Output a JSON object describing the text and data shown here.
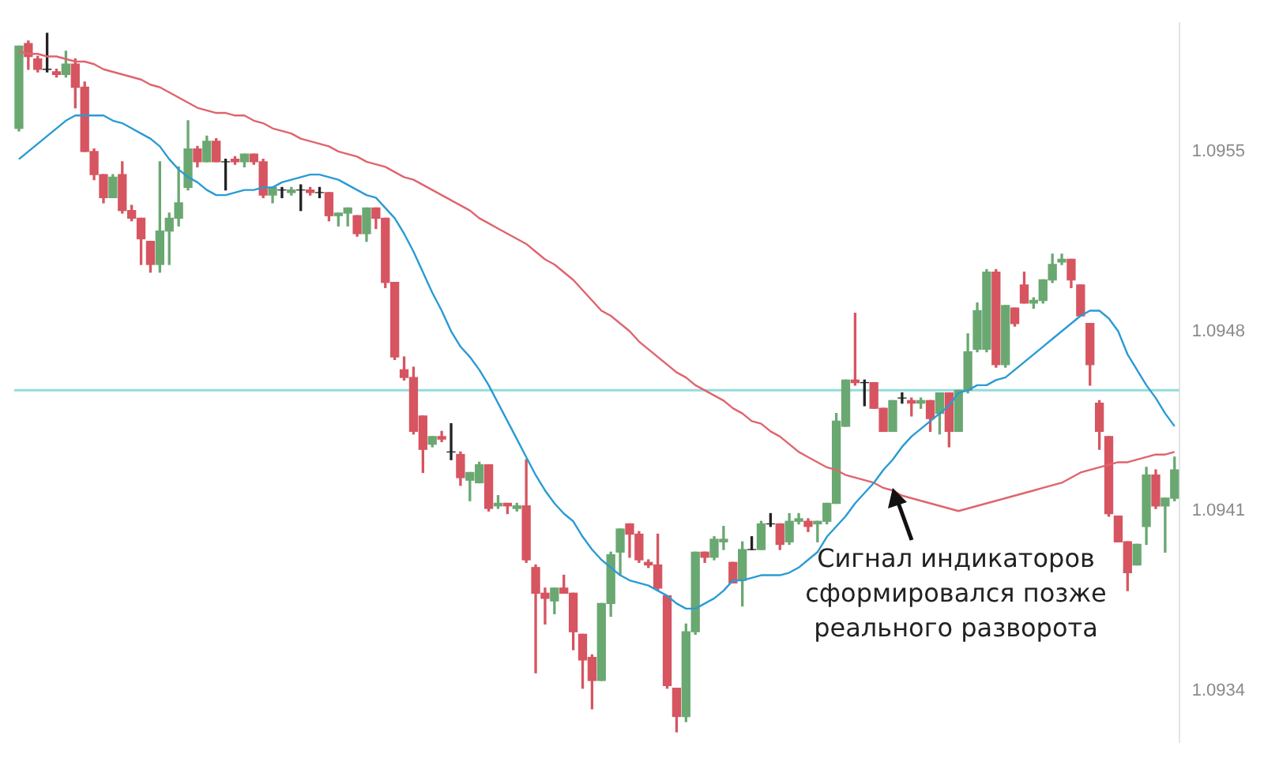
{
  "chart_data": {
    "type": "candlestick",
    "categories": [
      null,
      null,
      null,
      null,
      null,
      null,
      null,
      null,
      null,
      null,
      null,
      null,
      null,
      null,
      null,
      null,
      null,
      null,
      null,
      null,
      null,
      null,
      null,
      null,
      null,
      null,
      null,
      null,
      null,
      null,
      null,
      null,
      null,
      null,
      null,
      null,
      null,
      null,
      null,
      null,
      null,
      null,
      null,
      null,
      null,
      null,
      null,
      null,
      null,
      null,
      null,
      null,
      null,
      null,
      null,
      null,
      null,
      null,
      null,
      null,
      null,
      null,
      null,
      null,
      null,
      null,
      null,
      null,
      null,
      null,
      null,
      null,
      null,
      null,
      null,
      null,
      null,
      null,
      null,
      null,
      null,
      null,
      null,
      null,
      null,
      null,
      null,
      null,
      null,
      null,
      null,
      null,
      null,
      null,
      null,
      null,
      null,
      null,
      null,
      null,
      null,
      null,
      null,
      null,
      null,
      null,
      null,
      null,
      null,
      null,
      null,
      null,
      null,
      null,
      null,
      null,
      null,
      null,
      null,
      null,
      null,
      null,
      null,
      null
    ],
    "ohlc": [
      [
        1.09559,
        1.09591,
        1.09558,
        1.09591
      ],
      [
        1.09592,
        1.09593,
        1.09582,
        1.09587
      ],
      [
        1.09586,
        1.09587,
        1.09581,
        1.09582
      ],
      [
        1.09582,
        1.09596,
        1.09581,
        1.09582
      ],
      [
        1.09581,
        1.09582,
        1.09579,
        1.0958
      ],
      [
        1.0958,
        1.09589,
        1.09579,
        1.09584
      ],
      [
        1.09584,
        1.09586,
        1.09567,
        1.09575
      ],
      [
        1.09575,
        1.09577,
        1.0955,
        1.0955
      ],
      [
        1.0955,
        1.09551,
        1.09539,
        1.09541
      ],
      [
        1.09541,
        1.09541,
        1.0953,
        1.09532
      ],
      [
        1.09532,
        1.09541,
        1.09532,
        1.0954
      ],
      [
        1.09541,
        1.09546,
        1.09526,
        1.09527
      ],
      [
        1.09527,
        1.09529,
        1.09523,
        1.09524
      ],
      [
        1.09524,
        1.09524,
        1.09506,
        1.09516
      ],
      [
        1.09515,
        1.09515,
        1.09503,
        1.09506
      ],
      [
        1.09506,
        1.09546,
        1.09503,
        1.09519
      ],
      [
        1.09519,
        1.09526,
        1.09506,
        1.09524
      ],
      [
        1.09524,
        1.09544,
        1.09521,
        1.0953
      ],
      [
        1.09536,
        1.09562,
        1.09535,
        1.09551
      ],
      [
        1.09551,
        1.09552,
        1.09544,
        1.09546
      ],
      [
        1.09546,
        1.09556,
        1.09546,
        1.09554
      ],
      [
        1.09554,
        1.09555,
        1.09546,
        1.09546
      ],
      [
        1.09546,
        1.09547,
        1.09535,
        1.09546
      ],
      [
        1.09547,
        1.09548,
        1.09545,
        1.09546
      ],
      [
        1.09546,
        1.09549,
        1.09544,
        1.09549
      ],
      [
        1.09549,
        1.09549,
        1.09545,
        1.09546
      ],
      [
        1.09546,
        1.09547,
        1.09532,
        1.09533
      ],
      [
        1.09533,
        1.09536,
        1.0953,
        1.09536
      ],
      [
        1.09535,
        1.09536,
        1.09532,
        1.09535
      ],
      [
        1.09534,
        1.09536,
        1.09533,
        1.09535
      ],
      [
        1.09535,
        1.09537,
        1.09527,
        1.09535
      ],
      [
        1.09535,
        1.09536,
        1.09533,
        1.09534
      ],
      [
        1.09534,
        1.09536,
        1.09532,
        1.09534
      ],
      [
        1.09534,
        1.09534,
        1.09523,
        1.09525
      ],
      [
        1.09525,
        1.09526,
        1.09521,
        1.09526
      ],
      [
        1.09526,
        1.09528,
        1.09521,
        1.09528
      ],
      [
        1.09525,
        1.09525,
        1.09517,
        1.09518
      ],
      [
        1.09518,
        1.09528,
        1.09515,
        1.09528
      ],
      [
        1.09528,
        1.09528,
        1.0952,
        1.09524
      ],
      [
        1.09524,
        1.09524,
        1.09497,
        1.09499
      ],
      [
        1.09499,
        1.09499,
        1.09469,
        1.0947
      ],
      [
        1.09465,
        1.0947,
        1.09461,
        1.09462
      ],
      [
        1.09462,
        1.09466,
        1.0944,
        1.09441
      ],
      [
        1.09447,
        1.09447,
        1.09425,
        1.09434
      ],
      [
        1.09436,
        1.09439,
        1.09435,
        1.09439
      ],
      [
        1.09439,
        1.09441,
        1.09437,
        1.09438
      ],
      [
        1.09433,
        1.09444,
        1.0943,
        1.09433
      ],
      [
        1.09432,
        1.09433,
        1.0942,
        1.09423
      ],
      [
        1.09422,
        1.09425,
        1.09414,
        1.09425
      ],
      [
        1.09421,
        1.09429,
        1.09421,
        1.09428
      ],
      [
        1.09428,
        1.09428,
        1.0941,
        1.09411
      ],
      [
        1.09412,
        1.09416,
        1.09411,
        1.09413
      ],
      [
        1.09413,
        1.09413,
        1.09409,
        1.09412
      ],
      [
        1.09411,
        1.09413,
        1.0941,
        1.09412
      ],
      [
        1.09412,
        1.0943,
        1.0939,
        1.09391
      ],
      [
        1.09388,
        1.09389,
        1.09347,
        1.09378
      ],
      [
        1.09378,
        1.0938,
        1.09366,
        1.09376
      ],
      [
        1.09375,
        1.0938,
        1.0937,
        1.0938
      ],
      [
        1.0938,
        1.09385,
        1.09378,
        1.09378
      ],
      [
        1.09378,
        1.09378,
        1.09356,
        1.09363
      ],
      [
        1.09362,
        1.09362,
        1.09341,
        1.09352
      ],
      [
        1.09353,
        1.09354,
        1.09333,
        1.09344
      ],
      [
        1.09344,
        1.09374,
        1.09344,
        1.09374
      ],
      [
        1.09374,
        1.09394,
        1.09369,
        1.09393
      ],
      [
        1.09394,
        1.09403,
        1.09385,
        1.09403
      ],
      [
        1.09405,
        1.09405,
        1.09392,
        1.09401
      ],
      [
        1.09401,
        1.09402,
        1.0939,
        1.09391
      ],
      [
        1.0939,
        1.09391,
        1.09388,
        1.09389
      ],
      [
        1.09389,
        1.09401,
        1.09379,
        1.0938
      ],
      [
        1.09377,
        1.09377,
        1.09341,
        1.09342
      ],
      [
        1.09341,
        1.09341,
        1.09324,
        1.0933
      ],
      [
        1.0933,
        1.09366,
        1.09328,
        1.09363
      ],
      [
        1.09363,
        1.09394,
        1.09362,
        1.09394
      ],
      [
        1.09394,
        1.09394,
        1.0939,
        1.09392
      ],
      [
        1.09392,
        1.094,
        1.09391,
        1.09399
      ],
      [
        1.09398,
        1.09404,
        1.09395,
        1.09399
      ],
      [
        1.0939,
        1.0939,
        1.09382,
        1.09382
      ],
      [
        1.09383,
        1.09398,
        1.09373,
        1.09395
      ],
      [
        1.09395,
        1.094,
        1.09395,
        1.09395
      ],
      [
        1.09395,
        1.09406,
        1.09395,
        1.09405
      ],
      [
        1.09405,
        1.09409,
        1.09404,
        1.09405
      ],
      [
        1.09405,
        1.09405,
        1.09395,
        1.09397
      ],
      [
        1.09398,
        1.09409,
        1.09397,
        1.09406
      ],
      [
        1.09406,
        1.09409,
        1.09405,
        1.09407
      ],
      [
        1.09406,
        1.09407,
        1.09402,
        1.09404
      ],
      [
        1.09405,
        1.09406,
        1.09398,
        1.09406
      ],
      [
        1.09406,
        1.09413,
        1.09405,
        1.09413
      ],
      [
        1.09413,
        1.09448,
        1.09413,
        1.09445
      ],
      [
        1.09443,
        1.09461,
        1.09443,
        1.09461
      ],
      [
        1.09461,
        1.09487,
        1.09459,
        1.0946
      ],
      [
        1.0946,
        1.09461,
        1.09451,
        1.0946
      ],
      [
        1.0946,
        1.0946,
        1.0945,
        1.0945
      ],
      [
        1.0945,
        1.0945,
        1.09441,
        1.09441
      ],
      [
        1.09441,
        1.09453,
        1.09441,
        1.09453
      ],
      [
        1.09454,
        1.09456,
        1.09452,
        1.09454
      ],
      [
        1.09453,
        1.09454,
        1.09447,
        1.09452
      ],
      [
        1.09452,
        1.09454,
        1.0945,
        1.09453
      ],
      [
        1.09453,
        1.09453,
        1.09441,
        1.09446
      ],
      [
        1.09448,
        1.09456,
        1.0944,
        1.09456
      ],
      [
        1.09456,
        1.09456,
        1.09435,
        1.09441
      ],
      [
        1.09441,
        1.09457,
        1.09441,
        1.09457
      ],
      [
        1.09457,
        1.09479,
        1.09456,
        1.09472
      ],
      [
        1.09473,
        1.09491,
        1.09472,
        1.09488
      ],
      [
        1.09473,
        1.09504,
        1.09472,
        1.09503
      ],
      [
        1.09503,
        1.09504,
        1.09466,
        1.09467
      ],
      [
        1.09467,
        1.0949,
        1.09466,
        1.0949
      ],
      [
        1.09489,
        1.09489,
        1.09482,
        1.09483
      ],
      [
        1.09498,
        1.09503,
        1.09491,
        1.09491
      ],
      [
        1.09491,
        1.09493,
        1.09489,
        1.09492
      ],
      [
        1.09492,
        1.095,
        1.09491,
        1.095
      ],
      [
        1.095,
        1.0951,
        1.09499,
        1.09506
      ],
      [
        1.09507,
        1.0951,
        1.09506,
        1.09508
      ],
      [
        1.09508,
        1.09508,
        1.09497,
        1.095
      ],
      [
        1.09498,
        1.09498,
        1.09486,
        1.09486
      ],
      [
        1.09483,
        1.09483,
        1.09459,
        1.09467
      ],
      [
        1.09452,
        1.09453,
        1.09434,
        1.09441
      ],
      [
        1.09439,
        1.09439,
        1.09408,
        1.09409
      ],
      [
        1.09408,
        1.09408,
        1.09398,
        1.09398
      ],
      [
        1.09398,
        1.09398,
        1.09379,
        1.09386
      ],
      [
        1.09389,
        1.09397,
        1.09389,
        1.09397
      ],
      [
        1.09404,
        1.09427,
        1.09397,
        1.09424
      ],
      [
        1.09424,
        1.09426,
        1.09411,
        1.09412
      ],
      [
        1.09412,
        1.09415,
        1.09394,
        1.09415
      ],
      [
        1.09415,
        1.09431,
        1.09414,
        1.09426
      ]
    ],
    "series": [
      {
        "type": "line",
        "color": "#2a9bd4",
        "values": [
          1.09547,
          1.0955,
          1.09553,
          1.09556,
          1.09559,
          1.09562,
          1.09564,
          1.09564,
          1.09564,
          1.09564,
          1.09562,
          1.09561,
          1.09559,
          1.09557,
          1.09555,
          1.09552,
          1.09547,
          1.09543,
          1.0954,
          1.09538,
          1.09535,
          1.09533,
          1.09533,
          1.09534,
          1.09535,
          1.09535,
          1.09536,
          1.09536,
          1.09538,
          1.09539,
          1.0954,
          1.09541,
          1.09541,
          1.0954,
          1.09539,
          1.09537,
          1.09535,
          1.09533,
          1.09532,
          1.09528,
          1.09524,
          1.09518,
          1.09511,
          1.09503,
          1.09495,
          1.09488,
          1.0948,
          1.09474,
          1.0947,
          1.09465,
          1.09459,
          1.09452,
          1.09445,
          1.09438,
          1.09431,
          1.09424,
          1.09418,
          1.09413,
          1.09409,
          1.09406,
          1.094,
          1.09395,
          1.09391,
          1.09388,
          1.09385,
          1.09383,
          1.09382,
          1.09381,
          1.09379,
          1.09377,
          1.09374,
          1.09372,
          1.09372,
          1.09374,
          1.09376,
          1.09379,
          1.09383,
          1.09383,
          1.09384,
          1.09385,
          1.09385,
          1.09385,
          1.09386,
          1.09388,
          1.09391,
          1.09394,
          1.094,
          1.09404,
          1.09408,
          1.09413,
          1.09417,
          1.09421,
          1.09426,
          1.0943,
          1.09435,
          1.09439,
          1.09442,
          1.09445,
          1.09448,
          1.09451,
          1.09456,
          1.09457,
          1.09459,
          1.09459,
          1.09461,
          1.09462,
          1.09465,
          1.09468,
          1.09471,
          1.09474,
          1.09477,
          1.0948,
          1.09483,
          1.09486,
          1.09488,
          1.09488,
          1.09485,
          1.0948,
          1.09471,
          1.09465,
          1.09459,
          1.09454,
          1.09448,
          1.09443
        ]
      },
      {
        "type": "line",
        "color": "#e0646c",
        "values": [
          1.09589,
          1.09588,
          1.09588,
          1.09587,
          1.09587,
          1.09586,
          1.09585,
          1.09585,
          1.09584,
          1.09582,
          1.09581,
          1.0958,
          1.09579,
          1.09578,
          1.09576,
          1.09575,
          1.09573,
          1.09571,
          1.09569,
          1.09567,
          1.09566,
          1.09565,
          1.09565,
          1.09564,
          1.09564,
          1.09562,
          1.09561,
          1.09559,
          1.09558,
          1.09557,
          1.09555,
          1.09554,
          1.09553,
          1.09552,
          1.0955,
          1.09549,
          1.09548,
          1.09546,
          1.09545,
          1.09544,
          1.09542,
          1.0954,
          1.09539,
          1.09537,
          1.09535,
          1.09533,
          1.09531,
          1.09529,
          1.09527,
          1.09524,
          1.09522,
          1.0952,
          1.09518,
          1.09516,
          1.09514,
          1.09511,
          1.09508,
          1.09506,
          1.09503,
          1.095,
          1.09496,
          1.09492,
          1.09488,
          1.09486,
          1.09483,
          1.0948,
          1.09476,
          1.09473,
          1.0947,
          1.09467,
          1.09464,
          1.09462,
          1.09459,
          1.09457,
          1.09455,
          1.09453,
          1.0945,
          1.09448,
          1.09445,
          1.09444,
          1.09441,
          1.09439,
          1.09436,
          1.09433,
          1.09431,
          1.09429,
          1.09427,
          1.09426,
          1.09424,
          1.09423,
          1.09422,
          1.09421,
          1.09419,
          1.09418,
          1.09416,
          1.09415,
          1.09414,
          1.09413,
          1.09412,
          1.09411,
          1.0941,
          1.09411,
          1.09412,
          1.09413,
          1.09414,
          1.09415,
          1.09416,
          1.09417,
          1.09418,
          1.09419,
          1.0942,
          1.09421,
          1.09423,
          1.09425,
          1.09426,
          1.09427,
          1.09428,
          1.09429,
          1.09429,
          1.0943,
          1.09431,
          1.09432,
          1.09432,
          1.09433
        ]
      }
    ],
    "ylim": [
      1.0932,
      1.096
    ],
    "yticks": [
      1.0934,
      1.0941,
      1.0948,
      1.0955
    ],
    "ref_lines": [
      {
        "axis": "y",
        "value": 1.09457,
        "color": "#93dcdc"
      }
    ],
    "annotations": [
      "Сигнал индикаторов сформировался позже реального разворота"
    ],
    "marker": "none",
    "tick_labels": "y"
  }
}
